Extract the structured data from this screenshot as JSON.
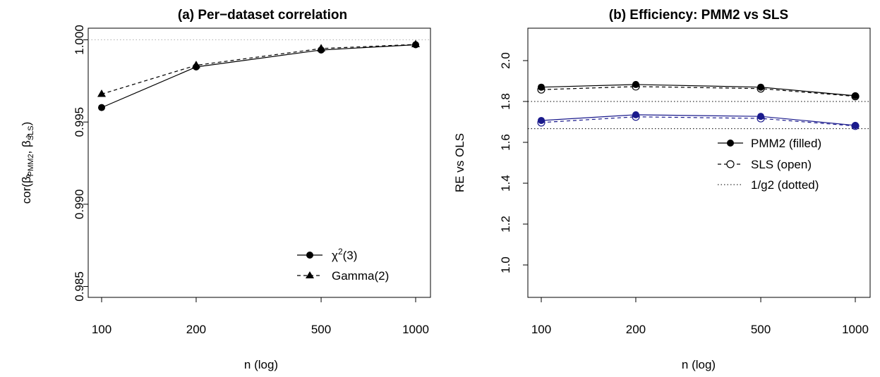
{
  "chart_data": [
    {
      "type": "line",
      "title": "(a) Per−dataset correlation",
      "xlabel": "n (log)",
      "ylabel": {
        "prefix": "cor(",
        "beta1": "β",
        "sub1": "PMM2",
        "sep": ", ",
        "beta2": "β",
        "sub2": "SLS",
        "suffix": ")"
      },
      "x_scale": "log",
      "x": [
        100,
        200,
        500,
        1000
      ],
      "x_tick_labels": [
        "100",
        "200",
        "500",
        "1000"
      ],
      "xlim": [
        100,
        1000
      ],
      "ylim": [
        0.985,
        1.0
      ],
      "y_ticks": [
        0.985,
        0.99,
        0.995,
        1.0
      ],
      "y_tick_labels": [
        "0.985",
        "0.990",
        "0.995",
        "1.000"
      ],
      "reference_lines": [
        {
          "y": 1.0,
          "style": "dotted",
          "color": "#b0b0b0"
        }
      ],
      "series": [
        {
          "name": "χ²(3)",
          "legend_main": "χ",
          "legend_sup": "2",
          "legend_rest": "(3)",
          "values": [
            0.99588,
            0.99835,
            0.99938,
            0.9997
          ],
          "line": "solid",
          "marker": "circle",
          "color": "#000000"
        },
        {
          "name": "Gamma(2)",
          "legend_main": "Gamma(2)",
          "values": [
            0.9967,
            0.99845,
            0.99947,
            0.99972
          ],
          "line": "dashed",
          "marker": "triangle",
          "color": "#000000"
        }
      ],
      "legend_position": "bottom-right",
      "grid": false
    },
    {
      "type": "line",
      "title": "(b) Efficiency: PMM2 vs SLS",
      "xlabel": "n (log)",
      "ylabel": {
        "text": "RE vs OLS"
      },
      "x_scale": "log",
      "x": [
        100,
        200,
        500,
        1000
      ],
      "x_tick_labels": [
        "100",
        "200",
        "500",
        "1000"
      ],
      "xlim": [
        100,
        1000
      ],
      "ylim": [
        1.0,
        2.0
      ],
      "y_ticks": [
        1.0,
        1.2,
        1.4,
        1.6,
        1.8,
        2.0
      ],
      "y_tick_labels": [
        "1.0",
        "1.2",
        "1.4",
        "1.6",
        "1.8",
        "2.0"
      ],
      "reference_lines": [
        {
          "y": 1.8,
          "style": "dotted",
          "color": "#000000"
        },
        {
          "y": 1.667,
          "style": "dotted",
          "color": "#000000"
        }
      ],
      "series": [
        {
          "name": "PMM2 (filled)",
          "values": [
            1.87,
            1.883,
            1.87,
            1.828
          ],
          "line": "solid",
          "marker": "filled-circle",
          "color": "#000000"
        },
        {
          "name": "SLS (open)",
          "values": [
            1.858,
            1.873,
            1.863,
            1.825
          ],
          "line": "dashed",
          "marker": "open-circle",
          "color": "#000000"
        },
        {
          "values": [
            1.707,
            1.735,
            1.727,
            1.683
          ],
          "line": "solid",
          "marker": "filled-circle",
          "color": "#1a1a8c"
        },
        {
          "values": [
            1.697,
            1.725,
            1.717,
            1.68
          ],
          "line": "dashed",
          "marker": "open-circle",
          "color": "#1a1a8c"
        }
      ],
      "legend": [
        {
          "label": "PMM2 (filled)",
          "line": "solid",
          "marker": "filled-circle"
        },
        {
          "label": "SLS (open)",
          "line": "dashed",
          "marker": "open-circle"
        },
        {
          "label": "1/g2 (dotted)",
          "line": "dotted",
          "marker": "none"
        }
      ],
      "legend_position": "right",
      "grid": false
    }
  ]
}
